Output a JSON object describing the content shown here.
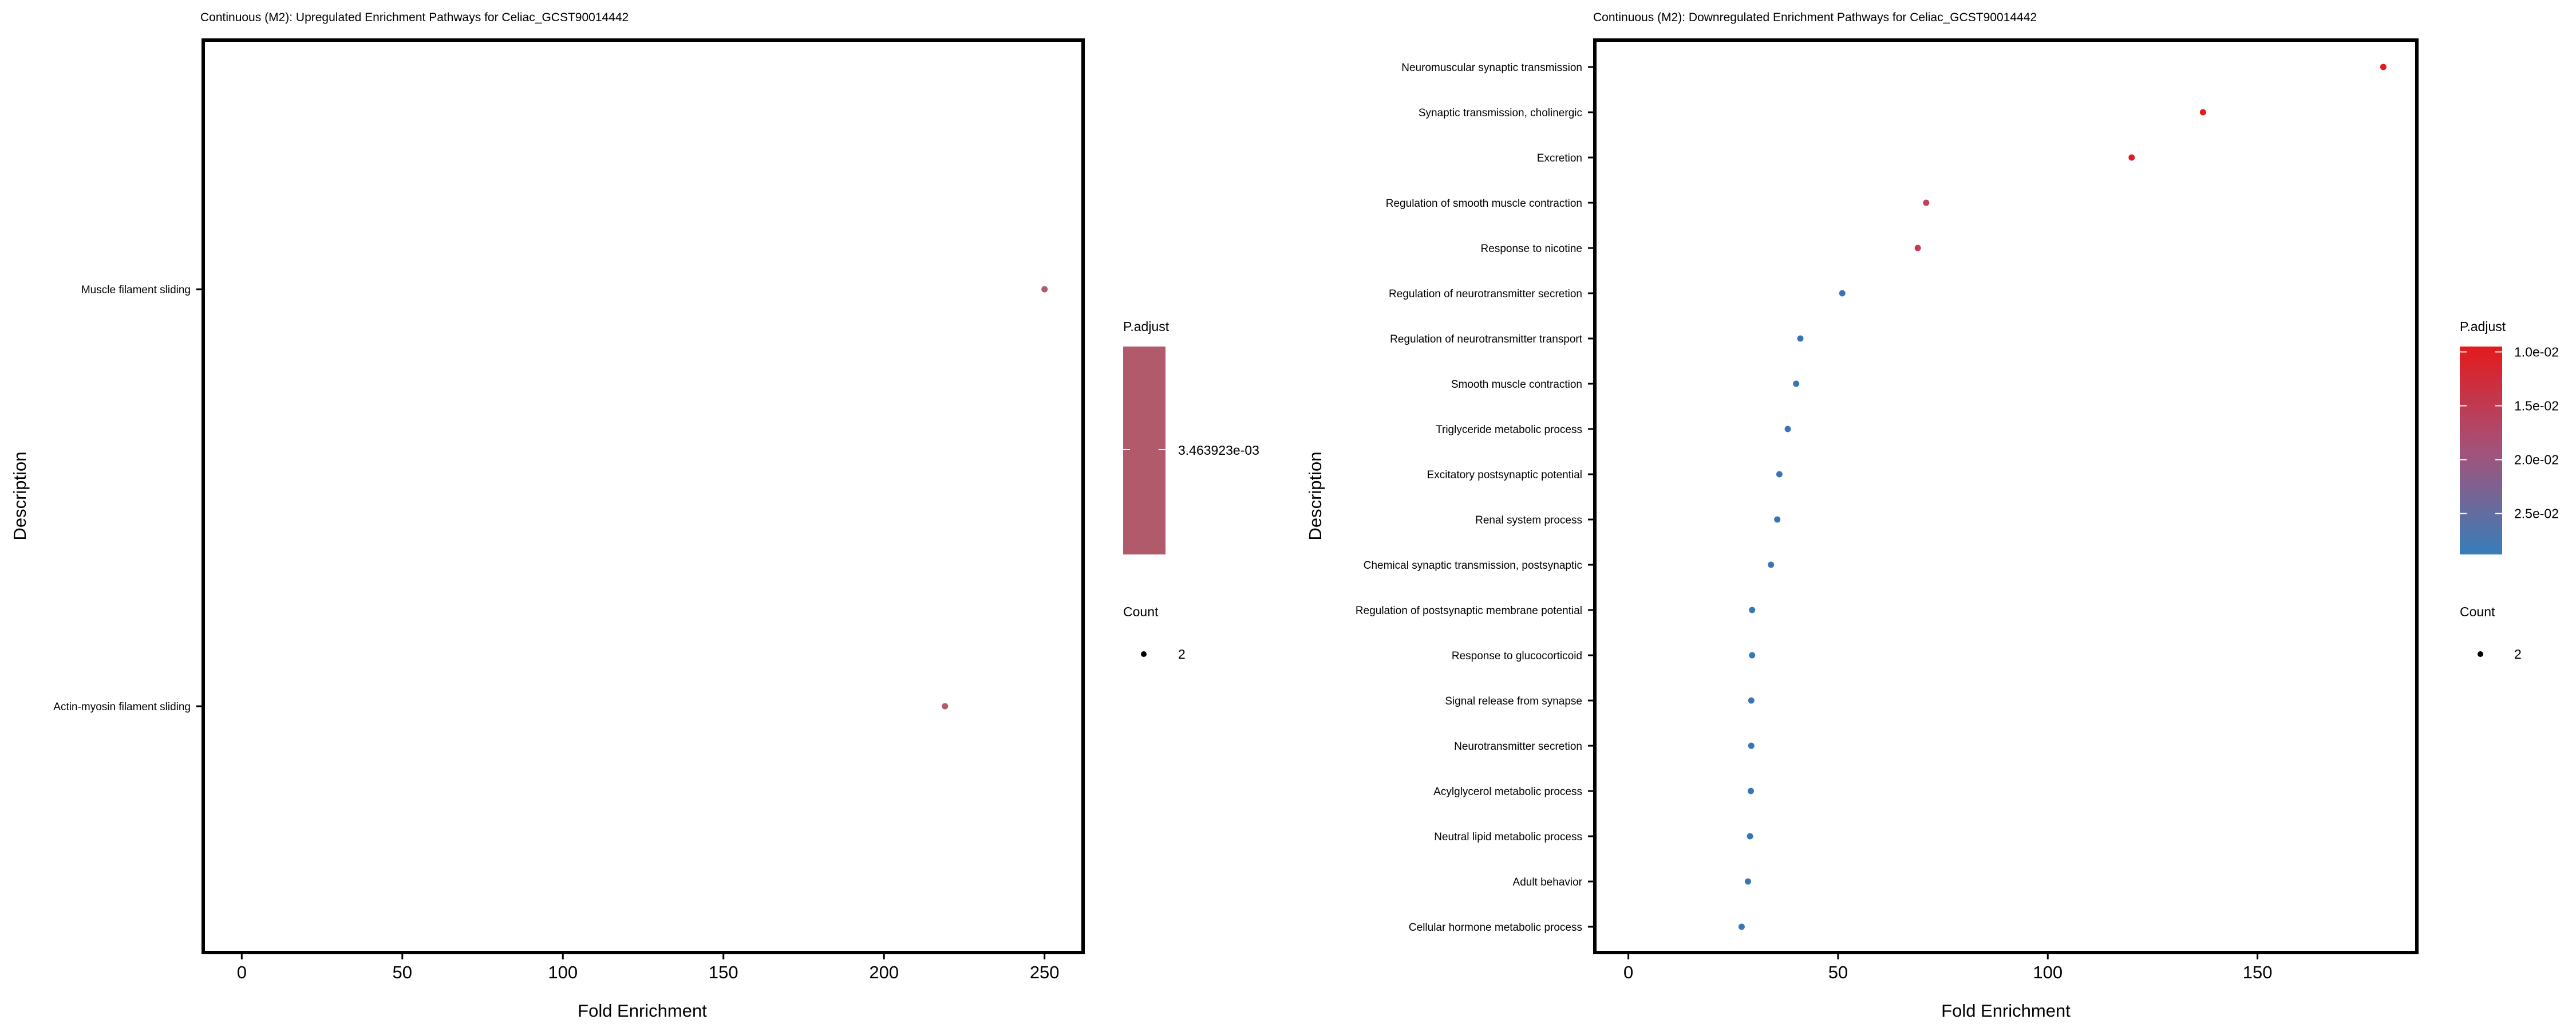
{
  "chart_data": [
    {
      "type": "scatter",
      "title": "Continuous (M2): Upregulated Enrichment Pathways for Celiac_GCST90014442",
      "xlabel": "Fold Enrichment",
      "ylabel": "Description",
      "xlim": [
        -12,
        262
      ],
      "xticks": [
        0,
        50,
        100,
        150,
        200,
        250
      ],
      "categories": [
        "Muscle filament sliding",
        "Actin-myosin filament sliding"
      ],
      "points": [
        {
          "label": "Muscle filament sliding",
          "x": 250,
          "p_adjust": 0.003463923,
          "count": 2,
          "color": "#b05a6b"
        },
        {
          "label": "Actin-myosin filament sliding",
          "x": 219,
          "p_adjust": 0.003463923,
          "count": 2,
          "color": "#b05a6b"
        }
      ],
      "legend": {
        "color_title": "P.adjust",
        "color_label": "3.463923e-03",
        "color_fill": "#b05a6b",
        "size_title": "Count",
        "size_label": "2"
      },
      "grid": false
    },
    {
      "type": "scatter",
      "title": "Continuous (M2): Downregulated Enrichment Pathways for Celiac_GCST90014442",
      "xlabel": "Fold Enrichment",
      "ylabel": "Description",
      "xlim": [
        -8,
        188
      ],
      "xticks": [
        0,
        50,
        100,
        150
      ],
      "categories": [
        "Neuromuscular synaptic transmission",
        "Synaptic transmission, cholinergic",
        "Excretion",
        "Regulation of smooth muscle contraction",
        "Response to nicotine",
        "Regulation of neurotransmitter secretion",
        "Regulation of neurotransmitter transport",
        "Smooth muscle contraction",
        "Triglyceride metabolic process",
        "Excitatory postsynaptic potential",
        "Renal system process",
        "Chemical synaptic transmission, postsynaptic",
        "Regulation of postsynaptic membrane potential",
        "Response to glucocorticoid",
        "Signal release from synapse",
        "Neurotransmitter secretion",
        "Acylglycerol metabolic process",
        "Neutral lipid metabolic process",
        "Adult behavior",
        "Cellular hormone metabolic process"
      ],
      "points": [
        {
          "label": "Neuromuscular synaptic transmission",
          "x": 180,
          "p_adjust": 0.01,
          "count": 2,
          "color": "#e41a1c"
        },
        {
          "label": "Synaptic transmission, cholinergic",
          "x": 137,
          "p_adjust": 0.01,
          "count": 2,
          "color": "#e41a1c"
        },
        {
          "label": "Excretion",
          "x": 120,
          "p_adjust": 0.0105,
          "count": 2,
          "color": "#e21c24"
        },
        {
          "label": "Regulation of smooth muscle contraction",
          "x": 71,
          "p_adjust": 0.017,
          "count": 2,
          "color": "#c4405a"
        },
        {
          "label": "Response to nicotine",
          "x": 69,
          "p_adjust": 0.016,
          "count": 2,
          "color": "#c83a52"
        },
        {
          "label": "Regulation of neurotransmitter secretion",
          "x": 51,
          "p_adjust": 0.026,
          "count": 2,
          "color": "#3a72b4"
        },
        {
          "label": "Regulation of neurotransmitter transport",
          "x": 41,
          "p_adjust": 0.026,
          "count": 2,
          "color": "#3a72b4"
        },
        {
          "label": "Smooth muscle contraction",
          "x": 40,
          "p_adjust": 0.027,
          "count": 2,
          "color": "#3a74b6"
        },
        {
          "label": "Triglyceride metabolic process",
          "x": 38,
          "p_adjust": 0.027,
          "count": 2,
          "color": "#3a74b6"
        },
        {
          "label": "Excitatory postsynaptic potential",
          "x": 36,
          "p_adjust": 0.027,
          "count": 2,
          "color": "#3a74b6"
        },
        {
          "label": "Renal system process",
          "x": 35.5,
          "p_adjust": 0.027,
          "count": 2,
          "color": "#3a74b6"
        },
        {
          "label": "Chemical synaptic transmission, postsynaptic",
          "x": 34,
          "p_adjust": 0.027,
          "count": 2,
          "color": "#3a74b6"
        },
        {
          "label": "Regulation of postsynaptic membrane potential",
          "x": 29.5,
          "p_adjust": 0.028,
          "count": 2,
          "color": "#3777b8"
        },
        {
          "label": "Response to glucocorticoid",
          "x": 29.5,
          "p_adjust": 0.028,
          "count": 2,
          "color": "#3777b8"
        },
        {
          "label": "Signal release from synapse",
          "x": 29.3,
          "p_adjust": 0.028,
          "count": 2,
          "color": "#3777b8"
        },
        {
          "label": "Neurotransmitter secretion",
          "x": 29.3,
          "p_adjust": 0.028,
          "count": 2,
          "color": "#3777b8"
        },
        {
          "label": "Acylglycerol metabolic process",
          "x": 29.2,
          "p_adjust": 0.028,
          "count": 2,
          "color": "#3777b8"
        },
        {
          "label": "Neutral lipid metabolic process",
          "x": 29.0,
          "p_adjust": 0.028,
          "count": 2,
          "color": "#3777b8"
        },
        {
          "label": "Adult behavior",
          "x": 28.5,
          "p_adjust": 0.028,
          "count": 2,
          "color": "#3777b8"
        },
        {
          "label": "Cellular hormone metabolic process",
          "x": 27,
          "p_adjust": 0.028,
          "count": 2,
          "color": "#3777b8"
        }
      ],
      "legend": {
        "color_title": "P.adjust",
        "color_ticks": [
          "1.0e-02",
          "1.5e-02",
          "2.0e-02",
          "2.5e-02"
        ],
        "color_tick_values": [
          0.01,
          0.015,
          0.02,
          0.025
        ],
        "color_range": [
          0.0095,
          0.0288
        ],
        "color_low": "#e41a1c",
        "color_high": "#377eb8",
        "size_title": "Count",
        "size_label": "2"
      },
      "grid": false
    }
  ]
}
